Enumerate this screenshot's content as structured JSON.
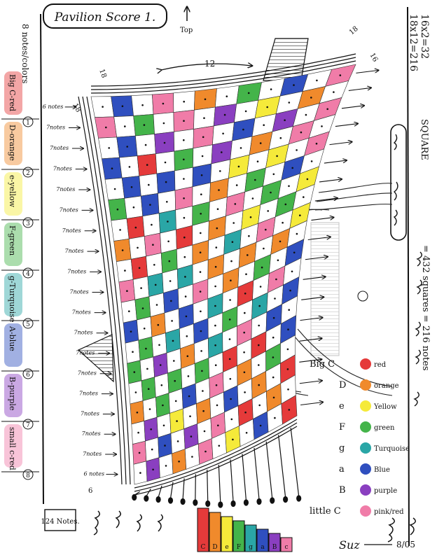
{
  "title": "Pavilion Score 1.",
  "top_label": "Top",
  "left_margin": {
    "header": "8 notes/colors",
    "items": [
      {
        "num": "1",
        "label": "Big C-red",
        "color": "#e53a3a"
      },
      {
        "num": "2",
        "label": "D-orange",
        "color": "#f08a2c"
      },
      {
        "num": "3",
        "label": "e-yellow",
        "color": "#f5ea3a"
      },
      {
        "num": "4",
        "label": "F-green",
        "color": "#44b44a"
      },
      {
        "num": "5",
        "label": "g-Turquoise",
        "color": "#2aa6a6"
      },
      {
        "num": "6",
        "label": "A-blue",
        "color": "#2f4fbf"
      },
      {
        "num": "7",
        "label": "B-purple",
        "color": "#8a3fc0"
      },
      {
        "num": "8",
        "label": "small c-red",
        "color": "#f07ca8"
      }
    ]
  },
  "right_margin": {
    "line1": "16x2=32",
    "line2": "18x12=216",
    "line3": "SQUARE",
    "footer": "= 432 squares = 216 notes"
  },
  "grid": {
    "top_number": "12",
    "left_number": "18",
    "corner_tl": "18",
    "corner_tr": "18",
    "right_num": "16",
    "corner_bl": "6"
  },
  "row_labels": [
    "6 notes",
    "7notes",
    "7notes",
    "7notes",
    "7notes",
    "7notes",
    "7notes",
    "7notes",
    "7notes",
    "7notes",
    "7notes",
    "7notes",
    "7notes",
    "7notes",
    "7notes",
    "7notes",
    "7notes",
    "7notes",
    "6 notes"
  ],
  "bottom_box": "124 Notes.",
  "legend": [
    {
      "label": "Big C",
      "name": "red",
      "color": "#e53a3a"
    },
    {
      "label": "D",
      "name": "orange",
      "color": "#f08a2c"
    },
    {
      "label": "e",
      "name": "Yellow",
      "color": "#f5ea3a"
    },
    {
      "label": "F",
      "name": "green",
      "color": "#44b44a"
    },
    {
      "label": "g",
      "name": "Turquoise",
      "color": "#2aa6a6"
    },
    {
      "label": "a",
      "name": "Blue",
      "color": "#2f4fbf"
    },
    {
      "label": "B",
      "name": "purple",
      "color": "#8a3fc0"
    },
    {
      "label": "little C",
      "name": "pink/red",
      "color": "#f07ca8"
    }
  ],
  "xylophone_letters": [
    "C",
    "D",
    "e",
    "F",
    "g",
    "a",
    "B",
    "c"
  ],
  "signature": "Suz",
  "date": "8/05",
  "palette": [
    "#e53a3a",
    "#f08a2c",
    "#f5ea3a",
    "#44b44a",
    "#2aa6a6",
    "#2f4fbf",
    "#8a3fc0",
    "#f07ca8"
  ]
}
